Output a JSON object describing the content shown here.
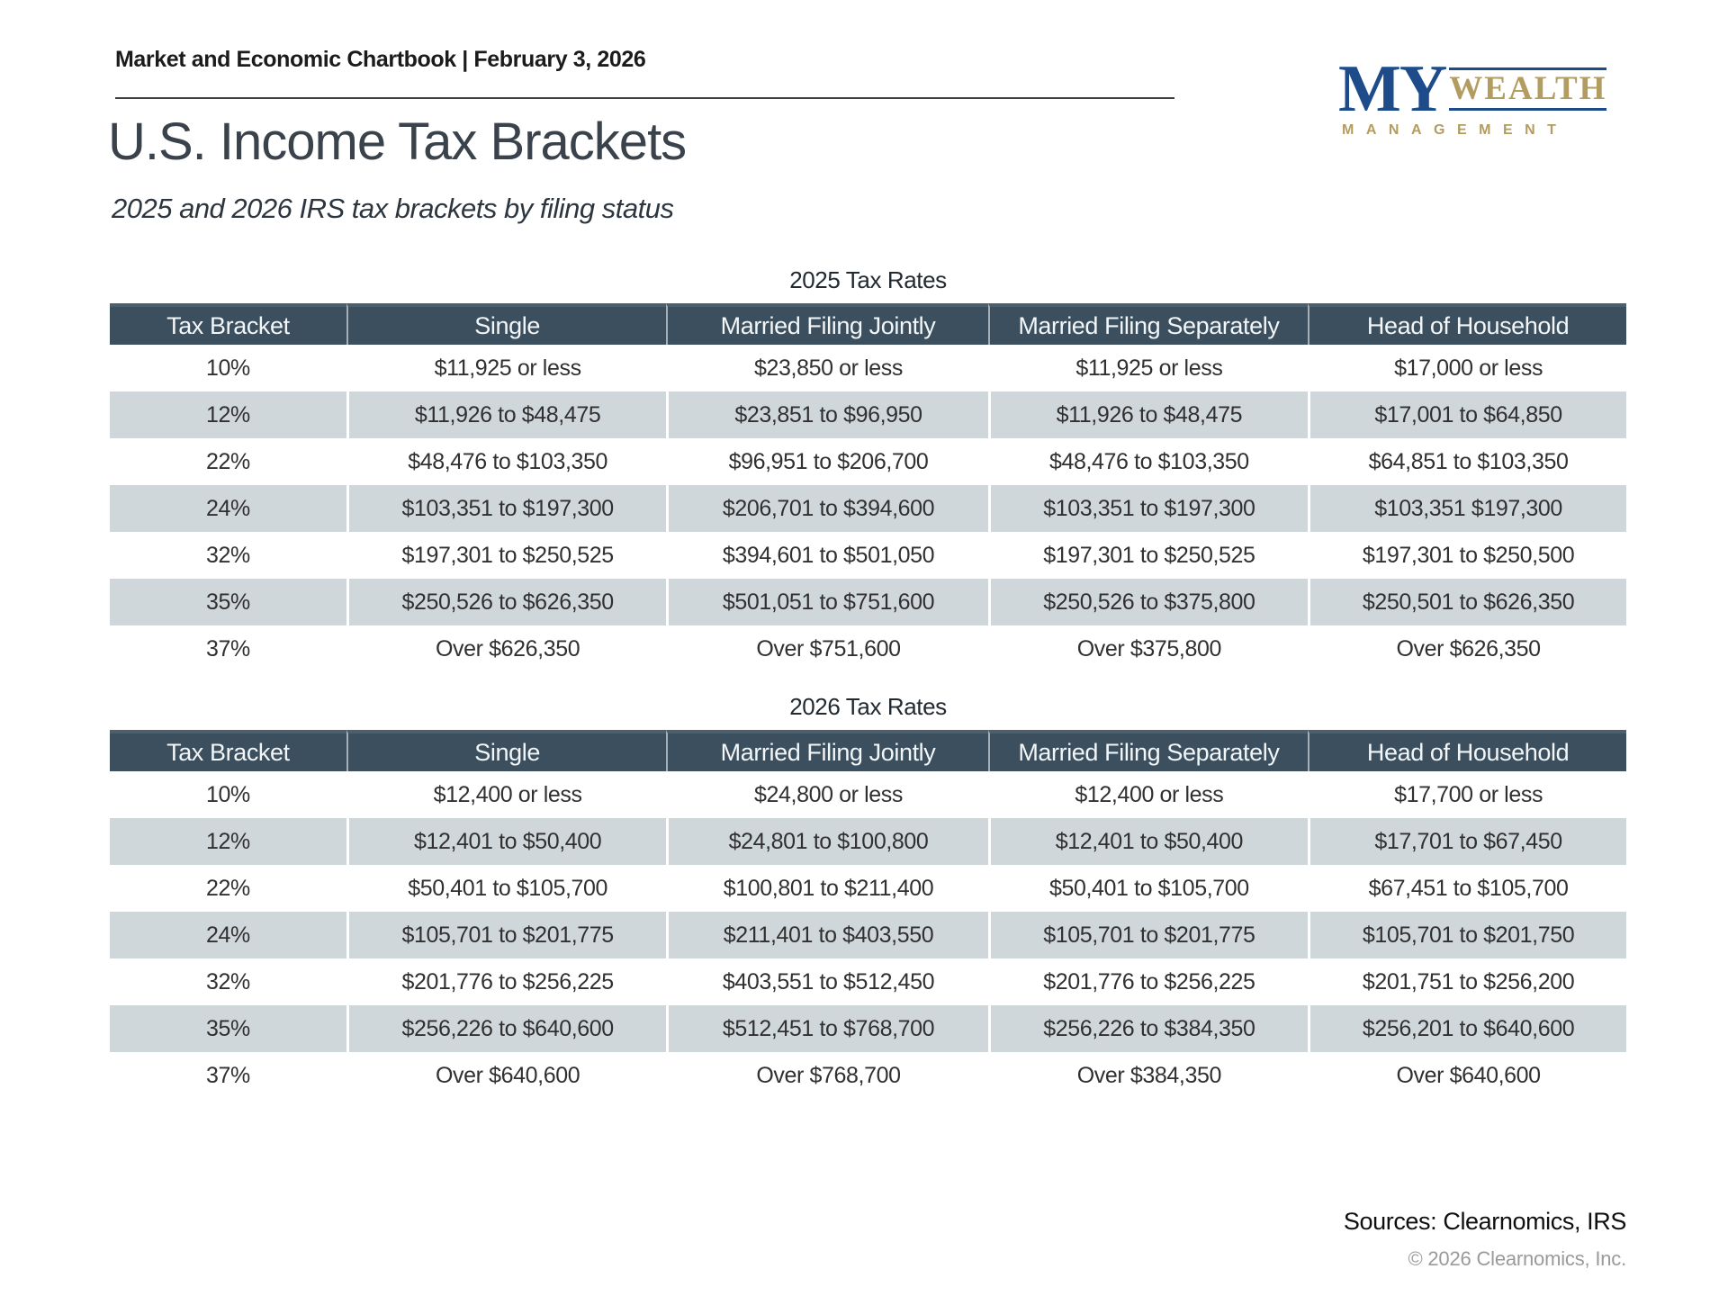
{
  "header": {
    "chartbook_line": "Market and Economic Chartbook | February 3, 2026",
    "title": "U.S. Income Tax Brackets",
    "subtitle": "2025 and 2026 IRS tax brackets by filing status"
  },
  "logo": {
    "primary": "MY",
    "secondary": "WEALTH",
    "tertiary": "MANAGEMENT"
  },
  "tables": [
    {
      "title": "2025 Tax Rates",
      "columns": [
        "Tax Bracket",
        "Single",
        "Married Filing Jointly",
        "Married Filing Separately",
        "Head of Household"
      ],
      "rows": [
        [
          "10%",
          "$11,925 or less",
          "$23,850 or less",
          "$11,925 or less",
          "$17,000 or less"
        ],
        [
          "12%",
          "$11,926 to $48,475",
          "$23,851 to $96,950",
          "$11,926 to $48,475",
          "$17,001 to $64,850"
        ],
        [
          "22%",
          "$48,476 to $103,350",
          "$96,951 to $206,700",
          "$48,476 to $103,350",
          "$64,851 to $103,350"
        ],
        [
          "24%",
          "$103,351 to $197,300",
          "$206,701 to $394,600",
          "$103,351 to $197,300",
          "$103,351 $197,300"
        ],
        [
          "32%",
          "$197,301 to $250,525",
          "$394,601 to $501,050",
          "$197,301 to $250,525",
          "$197,301 to $250,500"
        ],
        [
          "35%",
          "$250,526 to $626,350",
          "$501,051 to $751,600",
          "$250,526 to $375,800",
          "$250,501 to $626,350"
        ],
        [
          "37%",
          "Over $626,350",
          "Over $751,600",
          "Over $375,800",
          "Over $626,350"
        ]
      ]
    },
    {
      "title": "2026 Tax Rates",
      "columns": [
        "Tax Bracket",
        "Single",
        "Married Filing Jointly",
        "Married Filing Separately",
        "Head of Household"
      ],
      "rows": [
        [
          "10%",
          "$12,400 or less",
          "$24,800 or less",
          "$12,400 or less",
          "$17,700 or less"
        ],
        [
          "12%",
          "$12,401 to $50,400",
          "$24,801 to $100,800",
          "$12,401 to $50,400",
          "$17,701 to $67,450"
        ],
        [
          "22%",
          "$50,401 to $105,700",
          "$100,801 to $211,400",
          "$50,401 to $105,700",
          "$67,451 to $105,700"
        ],
        [
          "24%",
          "$105,701 to $201,775",
          "$211,401 to $403,550",
          "$105,701 to $201,775",
          "$105,701 to $201,750"
        ],
        [
          "32%",
          "$201,776 to $256,225",
          "$403,551 to $512,450",
          "$201,776 to $256,225",
          "$201,751 to $256,200"
        ],
        [
          "35%",
          "$256,226 to $640,600",
          "$512,451 to $768,700",
          "$256,226 to $384,350",
          "$256,201 to $640,600"
        ],
        [
          "37%",
          "Over $640,600",
          "Over $768,700",
          "Over $384,350",
          "Over $640,600"
        ]
      ]
    }
  ],
  "footer": {
    "sources": "Sources: Clearnomics, IRS",
    "copyright": "© 2026 Clearnomics, Inc."
  },
  "colors": {
    "table_header_band": "#3c4f5e",
    "table_stripe": "#d0d7db",
    "logo_navy": "#1e4b8a",
    "logo_gold": "#b39c5f"
  }
}
